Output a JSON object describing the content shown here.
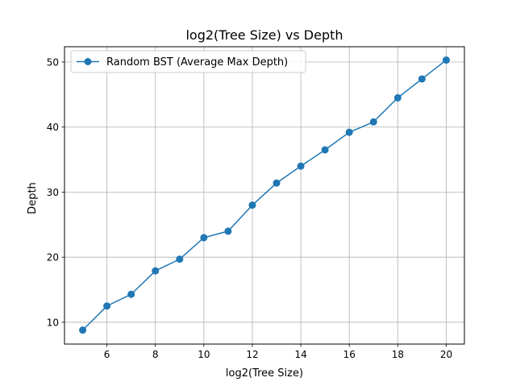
{
  "chart_data": {
    "type": "line",
    "title": "log2(Tree Size) vs Depth",
    "xlabel": "log2(Tree Size)",
    "ylabel": "Depth",
    "xlim": [
      4.25,
      20.75
    ],
    "ylim": [
      6.65,
      52.35
    ],
    "xticks": [
      6,
      8,
      10,
      12,
      14,
      16,
      18,
      20
    ],
    "yticks": [
      10,
      20,
      30,
      40,
      50
    ],
    "grid": true,
    "legend_position": "top-left",
    "series": [
      {
        "name": "Random BST (Average Max Depth)",
        "color": "#1f77b4",
        "marker": "circle",
        "x": [
          5,
          6,
          7,
          8,
          9,
          10,
          11,
          12,
          13,
          14,
          15,
          16,
          17,
          18,
          19,
          20
        ],
        "y": [
          8.8,
          12.5,
          14.3,
          17.9,
          19.7,
          23.0,
          24.0,
          28.0,
          31.4,
          34.0,
          36.5,
          39.2,
          40.8,
          44.5,
          47.4,
          50.3
        ]
      }
    ]
  }
}
